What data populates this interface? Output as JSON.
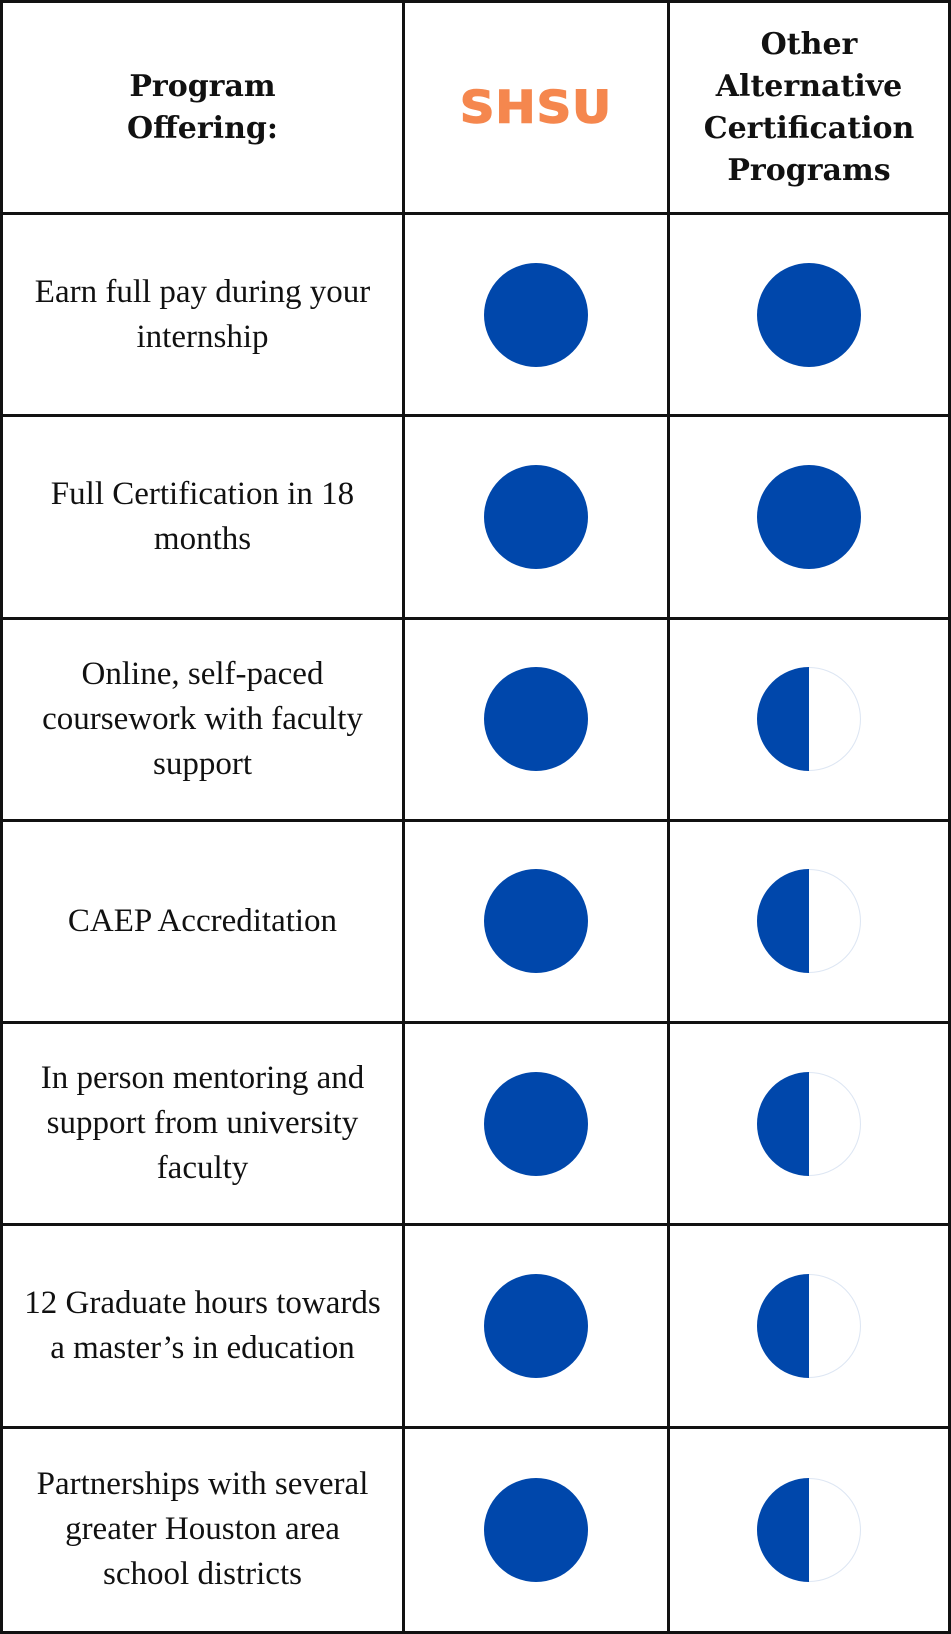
{
  "header": {
    "program_offering": "Program Offering:",
    "shsu_logo": "SHSU",
    "other_programs": "Other Alternative Certification Programs"
  },
  "colors": {
    "logo_orange": "#F5874E",
    "circle_blue": "#0047AB",
    "border": "#111111"
  },
  "rows": [
    {
      "feature": "Earn full pay during your internship",
      "shsu": 1.0,
      "other": 1.0
    },
    {
      "feature": "Full Certification in 18 months",
      "shsu": 1.0,
      "other": 1.0
    },
    {
      "feature": "Online, self-paced coursework with faculty support",
      "shsu": 1.0,
      "other": 0.5
    },
    {
      "feature": "CAEP Accreditation",
      "shsu": 1.0,
      "other": 0.5
    },
    {
      "feature": "In person mentoring and support from university faculty",
      "shsu": 1.0,
      "other": 0.5
    },
    {
      "feature": "12 Graduate hours towards a master’s in education",
      "shsu": 1.0,
      "other": 0.5
    },
    {
      "feature": "Partnerships with several greater Houston area school districts",
      "shsu": 1.0,
      "other": 0.5
    }
  ]
}
